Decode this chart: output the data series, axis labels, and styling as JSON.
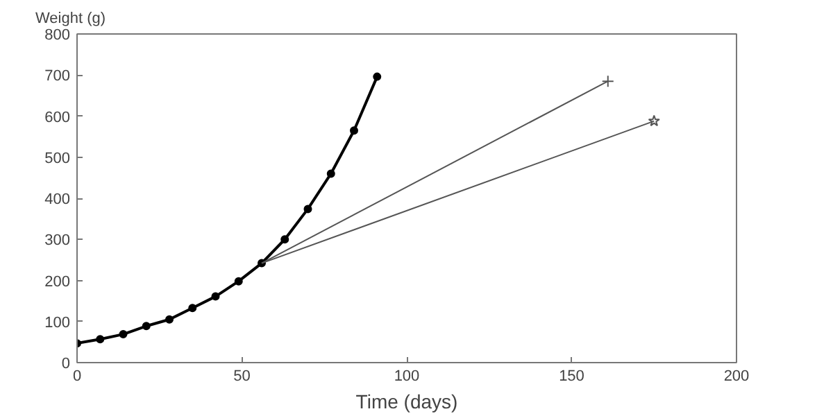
{
  "chart_data": {
    "type": "line",
    "xlabel": "Time (days)",
    "ylabel": "Weight (g)",
    "xlim": [
      0,
      200
    ],
    "xticks": [
      0,
      50,
      100,
      150,
      200
    ],
    "ylim": [
      0,
      800
    ],
    "yticks": [
      0,
      100,
      200,
      300,
      400,
      500,
      600,
      700,
      800
    ],
    "grid": false,
    "series": [
      {
        "color": "#000000",
        "marker": "circle",
        "x": [
          0,
          7,
          14,
          21,
          28,
          35,
          42,
          49,
          56,
          63,
          70,
          77,
          84,
          91
        ],
        "values": [
          47,
          57,
          69,
          89,
          105,
          133,
          161,
          198,
          242,
          300,
          374,
          460,
          565,
          696
        ]
      },
      {
        "color": "#555555",
        "marker": "cross",
        "x": [
          56,
          161
        ],
        "values": [
          242,
          685
        ]
      },
      {
        "color": "#555555",
        "marker": "star",
        "x": [
          56,
          175
        ],
        "values": [
          242,
          588
        ]
      }
    ]
  }
}
